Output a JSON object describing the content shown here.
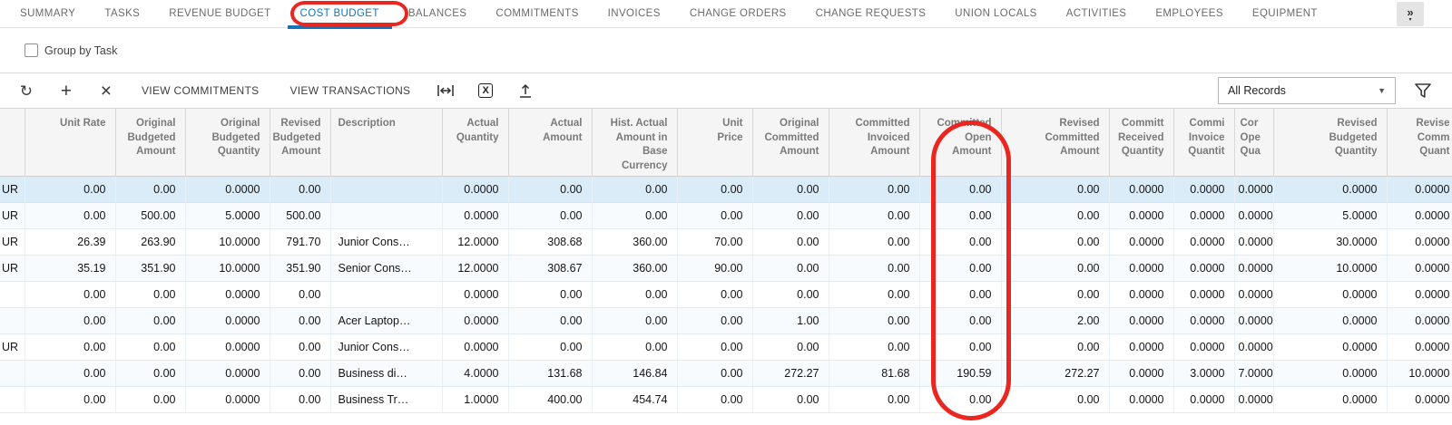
{
  "colors": {
    "accent_blue": "#1175bc",
    "annotation_red": "#e9261f",
    "selected_row_bg": "#d9ecf8",
    "alt_row_bg": "#f7fbfe"
  },
  "tabs": {
    "items": [
      {
        "label": "SUMMARY",
        "active": false
      },
      {
        "label": "TASKS",
        "active": false
      },
      {
        "label": "REVENUE BUDGET",
        "active": false
      },
      {
        "label": "COST BUDGET",
        "active": true
      },
      {
        "label": "BALANCES",
        "active": false
      },
      {
        "label": "COMMITMENTS",
        "active": false
      },
      {
        "label": "INVOICES",
        "active": false
      },
      {
        "label": "CHANGE ORDERS",
        "active": false
      },
      {
        "label": "CHANGE REQUESTS",
        "active": false
      },
      {
        "label": "UNION LOCALS",
        "active": false
      },
      {
        "label": "ACTIVITIES",
        "active": false
      },
      {
        "label": "EMPLOYEES",
        "active": false
      },
      {
        "label": "EQUIPMENT",
        "active": false
      }
    ],
    "overflow_button": "»",
    "overflow_caret": "▾"
  },
  "group_by": {
    "label": "Group by Task",
    "checked": false
  },
  "toolbar": {
    "refresh_glyph": "↻",
    "add_glyph": "+",
    "delete_glyph": "×",
    "view_commitments_label": "VIEW COMMITMENTS",
    "view_transactions_label": "VIEW TRANSACTIONS",
    "excel_glyph": "X",
    "filter_selector_value": "All Records",
    "dropdown_caret": "▼"
  },
  "table": {
    "selected_row_index": 0,
    "columns": [
      {
        "key": "uom",
        "lines": [
          ""
        ],
        "align": "right"
      },
      {
        "key": "unit-rate",
        "lines": [
          "Unit Rate"
        ],
        "align": "right"
      },
      {
        "key": "original-budgeted-amount",
        "lines": [
          "Original",
          "Budgeted",
          "Amount"
        ],
        "align": "right"
      },
      {
        "key": "original-budgeted-quantity",
        "lines": [
          "Original",
          "Budgeted",
          "Quantity"
        ],
        "align": "right"
      },
      {
        "key": "revised-budgeted-amount",
        "lines": [
          "Revised",
          "Budgeted",
          "Amount"
        ],
        "align": "right"
      },
      {
        "key": "description",
        "lines": [
          "Description"
        ],
        "align": "left"
      },
      {
        "key": "actual-quantity",
        "lines": [
          "Actual",
          "Quantity"
        ],
        "align": "right"
      },
      {
        "key": "actual-amount",
        "lines": [
          "Actual",
          "Amount"
        ],
        "align": "right"
      },
      {
        "key": "hist-actual-amount-in-base-currency",
        "lines": [
          "Hist. Actual",
          "Amount in",
          "Base",
          "Currency"
        ],
        "align": "right"
      },
      {
        "key": "unit-price",
        "lines": [
          "Unit",
          "Price"
        ],
        "align": "right"
      },
      {
        "key": "original-committed-amount",
        "lines": [
          "Original",
          "Committed",
          "Amount"
        ],
        "align": "right"
      },
      {
        "key": "committed-invoiced-amount",
        "lines": [
          "Committed",
          "Invoiced",
          "Amount"
        ],
        "align": "right"
      },
      {
        "key": "committed-open-amount",
        "lines": [
          "Committed",
          "Open",
          "Amount"
        ],
        "align": "right"
      },
      {
        "key": "revised-committed-amount",
        "lines": [
          "Revised",
          "Committed",
          "Amount"
        ],
        "align": "right"
      },
      {
        "key": "committed-received-quantity",
        "lines": [
          "Committ",
          "Received",
          "Quantity"
        ],
        "align": "right"
      },
      {
        "key": "committed-invoiced-quantity",
        "lines": [
          "Commi",
          "Invoice",
          "Quantit"
        ],
        "align": "right"
      },
      {
        "key": "committed-open-quantity",
        "lines": [
          "Cor",
          "Ope",
          "Qua"
        ],
        "align": "clipleft"
      },
      {
        "key": "revised-budgeted-quantity",
        "lines": [
          "Revised",
          "Budgeted",
          "Quantity"
        ],
        "align": "right"
      },
      {
        "key": "revised-committed-quantity",
        "lines": [
          "Revise",
          "Comm",
          "Quant"
        ],
        "align": "right"
      }
    ],
    "rows": [
      [
        "UR",
        "0.00",
        "0.00",
        "0.0000",
        "0.00",
        "",
        "0.0000",
        "0.00",
        "0.00",
        "0.00",
        "0.00",
        "0.00",
        "0.00",
        "0.00",
        "0.0000",
        "0.0000",
        "0.0000",
        "0.0000",
        "0.0000"
      ],
      [
        "UR",
        "0.00",
        "500.00",
        "5.0000",
        "500.00",
        "",
        "0.0000",
        "0.00",
        "0.00",
        "0.00",
        "0.00",
        "0.00",
        "0.00",
        "0.00",
        "0.0000",
        "0.0000",
        "0.0000",
        "5.0000",
        "0.0000"
      ],
      [
        "UR",
        "26.39",
        "263.90",
        "10.0000",
        "791.70",
        "Junior Cons…",
        "12.0000",
        "308.68",
        "360.00",
        "70.00",
        "0.00",
        "0.00",
        "0.00",
        "0.00",
        "0.0000",
        "0.0000",
        "0.0000",
        "30.0000",
        "0.0000"
      ],
      [
        "UR",
        "35.19",
        "351.90",
        "10.0000",
        "351.90",
        "Senior Cons…",
        "12.0000",
        "308.67",
        "360.00",
        "90.00",
        "0.00",
        "0.00",
        "0.00",
        "0.00",
        "0.0000",
        "0.0000",
        "0.0000",
        "10.0000",
        "0.0000"
      ],
      [
        "",
        "0.00",
        "0.00",
        "0.0000",
        "0.00",
        "",
        "0.0000",
        "0.00",
        "0.00",
        "0.00",
        "0.00",
        "0.00",
        "0.00",
        "0.00",
        "0.0000",
        "0.0000",
        "0.0000",
        "0.0000",
        "0.0000"
      ],
      [
        "",
        "0.00",
        "0.00",
        "0.0000",
        "0.00",
        "Acer Laptop…",
        "0.0000",
        "0.00",
        "0.00",
        "0.00",
        "1.00",
        "0.00",
        "0.00",
        "2.00",
        "0.0000",
        "0.0000",
        "0.0000",
        "0.0000",
        "0.0000"
      ],
      [
        "UR",
        "0.00",
        "0.00",
        "0.0000",
        "0.00",
        "Junior Cons…",
        "0.0000",
        "0.00",
        "0.00",
        "0.00",
        "0.00",
        "0.00",
        "0.00",
        "0.00",
        "0.0000",
        "0.0000",
        "0.0000",
        "0.0000",
        "0.0000"
      ],
      [
        "",
        "0.00",
        "0.00",
        "0.0000",
        "0.00",
        "Business di…",
        "4.0000",
        "131.68",
        "146.84",
        "0.00",
        "272.27",
        "81.68",
        "190.59",
        "272.27",
        "0.0000",
        "3.0000",
        "7.0000",
        "0.0000",
        "10.0000"
      ],
      [
        "",
        "0.00",
        "0.00",
        "0.0000",
        "0.00",
        "Business Tr…",
        "1.0000",
        "400.00",
        "454.74",
        "0.00",
        "0.00",
        "0.00",
        "0.00",
        "0.00",
        "0.0000",
        "0.0000",
        "0.0000",
        "0.0000",
        "0.0000"
      ]
    ]
  }
}
